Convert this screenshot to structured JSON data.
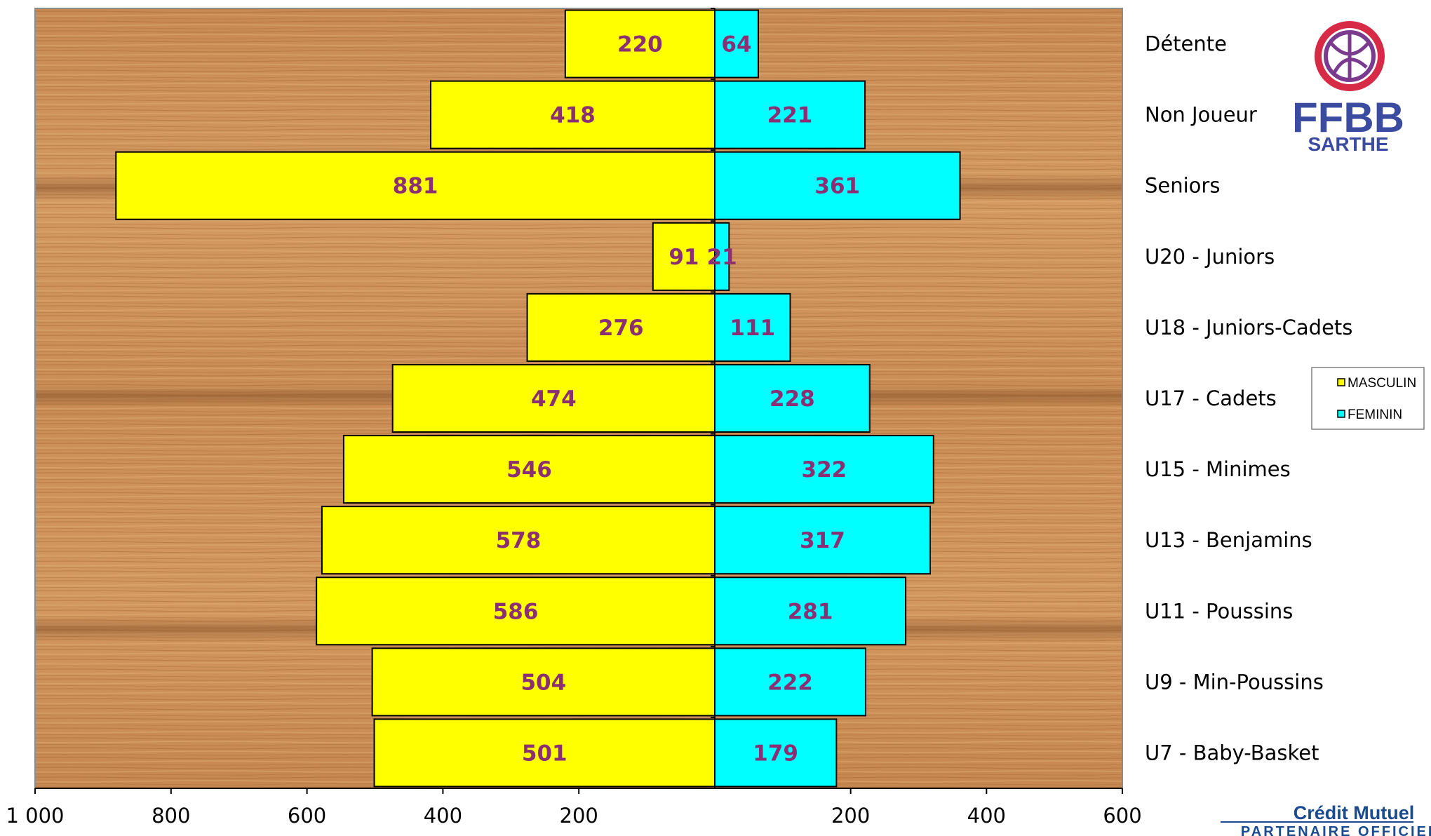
{
  "chart_data": {
    "type": "bar",
    "orientation": "horizontal-population-pyramid",
    "categories": [
      "Détente",
      "Non Joueur",
      "Seniors",
      "U20 - Juniors",
      "U18 - Juniors-Cadets",
      "U17 - Cadets",
      "U15 - Minimes",
      "U13 - Benjamins",
      "U11 - Poussins",
      "U9 - Min-Poussins",
      "U7 - Baby-Basket"
    ],
    "series": [
      {
        "name": "MASCULIN",
        "color": "#ffff00",
        "values": [
          220,
          418,
          881,
          91,
          276,
          474,
          546,
          578,
          586,
          504,
          501
        ]
      },
      {
        "name": "FEMININ",
        "color": "#00ffff",
        "values": [
          64,
          221,
          361,
          21,
          111,
          228,
          322,
          317,
          281,
          222,
          179
        ]
      }
    ],
    "xlim_left": [
      0,
      1000
    ],
    "xlim_right": [
      0,
      600
    ],
    "x_ticks": [
      "1 000",
      "800",
      "600",
      "400",
      "200",
      "200",
      "400",
      "600"
    ],
    "legend_placement": "right",
    "label_color": "#8b2f73",
    "grid": false
  },
  "logo": {
    "text": "FFBB",
    "subtext": "SARTHE"
  },
  "sponsor": {
    "name": "Crédit Mutuel",
    "tagline": "PARTENAIRE OFFICIEL"
  }
}
